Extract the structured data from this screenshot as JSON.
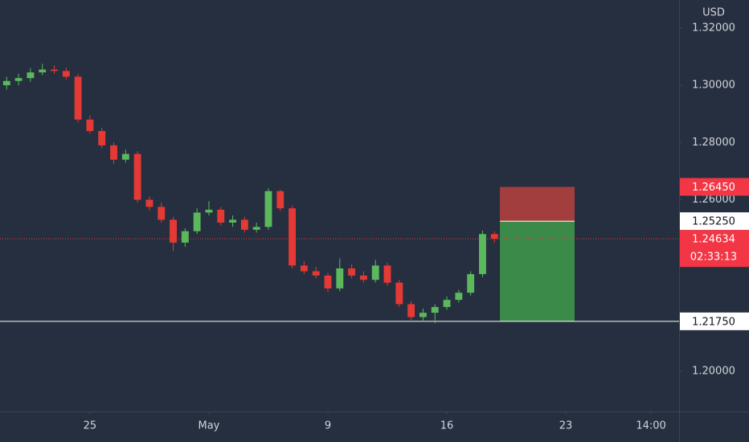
{
  "chart_data": {
    "type": "candlestick",
    "y_axis_label": "USD",
    "xlim": [
      -3.78,
      24.76
    ],
    "ylim": [
      1.186,
      1.3298
    ],
    "xticks": [
      {
        "value": 0,
        "label": "25"
      },
      {
        "value": 5,
        "label": "May"
      },
      {
        "value": 10,
        "label": "9"
      },
      {
        "value": 15,
        "label": "16"
      },
      {
        "value": 20,
        "label": "23"
      },
      {
        "value": 23.58,
        "label": "14:00"
      }
    ],
    "yticks": [
      {
        "value": 1.32,
        "label": "1.32000"
      },
      {
        "value": 1.3,
        "label": "1.30000"
      },
      {
        "value": 1.28,
        "label": "1.28000"
      },
      {
        "value": 1.26,
        "label": "1.26000"
      },
      {
        "value": 1.2,
        "label": "1.20000"
      }
    ],
    "up_color": "#5cb85c",
    "down_color": "#e53935",
    "grid": false,
    "series": [
      {
        "x": [
          -3.5,
          -3,
          -2.5,
          -2,
          -1.5,
          -1,
          -0.5,
          0,
          0.5,
          1,
          1.5,
          2,
          2.5,
          3,
          3.5,
          4,
          4.5,
          5,
          5.5,
          6,
          6.5,
          7,
          7.5,
          8,
          8.5,
          9,
          9.5,
          10,
          10.5,
          11,
          11.5,
          12,
          12.5,
          13,
          13.5,
          14,
          14.5,
          15,
          15.5,
          16,
          16.5,
          17
        ],
        "open": [
          1.3,
          1.3015,
          1.3025,
          1.3045,
          1.3055,
          1.305,
          1.303,
          1.288,
          1.284,
          1.279,
          1.274,
          1.276,
          1.26,
          1.2575,
          1.253,
          1.245,
          1.249,
          1.2555,
          1.2565,
          1.252,
          1.253,
          1.2495,
          1.2505,
          1.263,
          1.257,
          1.237,
          1.235,
          1.2335,
          1.229,
          1.236,
          1.2335,
          1.232,
          1.237,
          1.231,
          1.2235,
          1.219,
          1.2205,
          1.2225,
          1.225,
          1.2275,
          1.234,
          1.248
        ],
        "high": [
          1.303,
          1.304,
          1.306,
          1.3075,
          1.307,
          1.3062,
          1.304,
          1.2895,
          1.2852,
          1.28,
          1.2775,
          1.277,
          1.2612,
          1.259,
          1.254,
          1.25,
          1.257,
          1.2595,
          1.2575,
          1.2545,
          1.254,
          1.252,
          1.264,
          1.2635,
          1.258,
          1.2385,
          1.2365,
          1.2345,
          1.2395,
          1.2375,
          1.235,
          1.239,
          1.238,
          1.232,
          1.2245,
          1.222,
          1.2235,
          1.2262,
          1.2285,
          1.235,
          1.2492,
          1.249
        ],
        "low": [
          1.2985,
          1.3,
          1.3012,
          1.3035,
          1.304,
          1.302,
          1.287,
          1.283,
          1.278,
          1.2725,
          1.273,
          1.259,
          1.2562,
          1.252,
          1.242,
          1.2435,
          1.248,
          1.2545,
          1.251,
          1.2505,
          1.2485,
          1.2485,
          1.2495,
          1.256,
          1.236,
          1.234,
          1.2325,
          1.2278,
          1.228,
          1.2325,
          1.231,
          1.231,
          1.23,
          1.2225,
          1.218,
          1.2172,
          1.2168,
          1.2215,
          1.224,
          1.2265,
          1.233,
          1.245
        ],
        "close": [
          1.3015,
          1.3025,
          1.3045,
          1.3055,
          1.305,
          1.303,
          1.288,
          1.284,
          1.279,
          1.274,
          1.276,
          1.26,
          1.2575,
          1.253,
          1.245,
          1.249,
          1.2555,
          1.2565,
          1.252,
          1.253,
          1.2495,
          1.2505,
          1.263,
          1.257,
          1.237,
          1.235,
          1.2335,
          1.229,
          1.236,
          1.2335,
          1.232,
          1.237,
          1.231,
          1.2235,
          1.219,
          1.2205,
          1.2225,
          1.225,
          1.2275,
          1.234,
          1.248,
          1.24634
        ]
      }
    ],
    "position": {
      "x": [
        17.23,
        20.37
      ],
      "stop": 1.2645,
      "entry": 1.2525,
      "target": 1.2175,
      "stop_color": "#a23f3e",
      "target_color": "#3c8a4a"
    },
    "current_price": {
      "value": 1.24634,
      "label": "1.24634",
      "countdown": "02:33:13",
      "color": "#f23645"
    },
    "price_labels": [
      {
        "value": 1.2645,
        "label": "1.26450",
        "color": "#f23645",
        "text_color": "#ffffff"
      },
      {
        "value": 1.2525,
        "label": "1.25250",
        "color": "#ffffff",
        "text_color": "#131722"
      },
      {
        "value": 1.2175,
        "label": "1.21750",
        "color": "#ffffff",
        "text_color": "#131722"
      }
    ]
  }
}
